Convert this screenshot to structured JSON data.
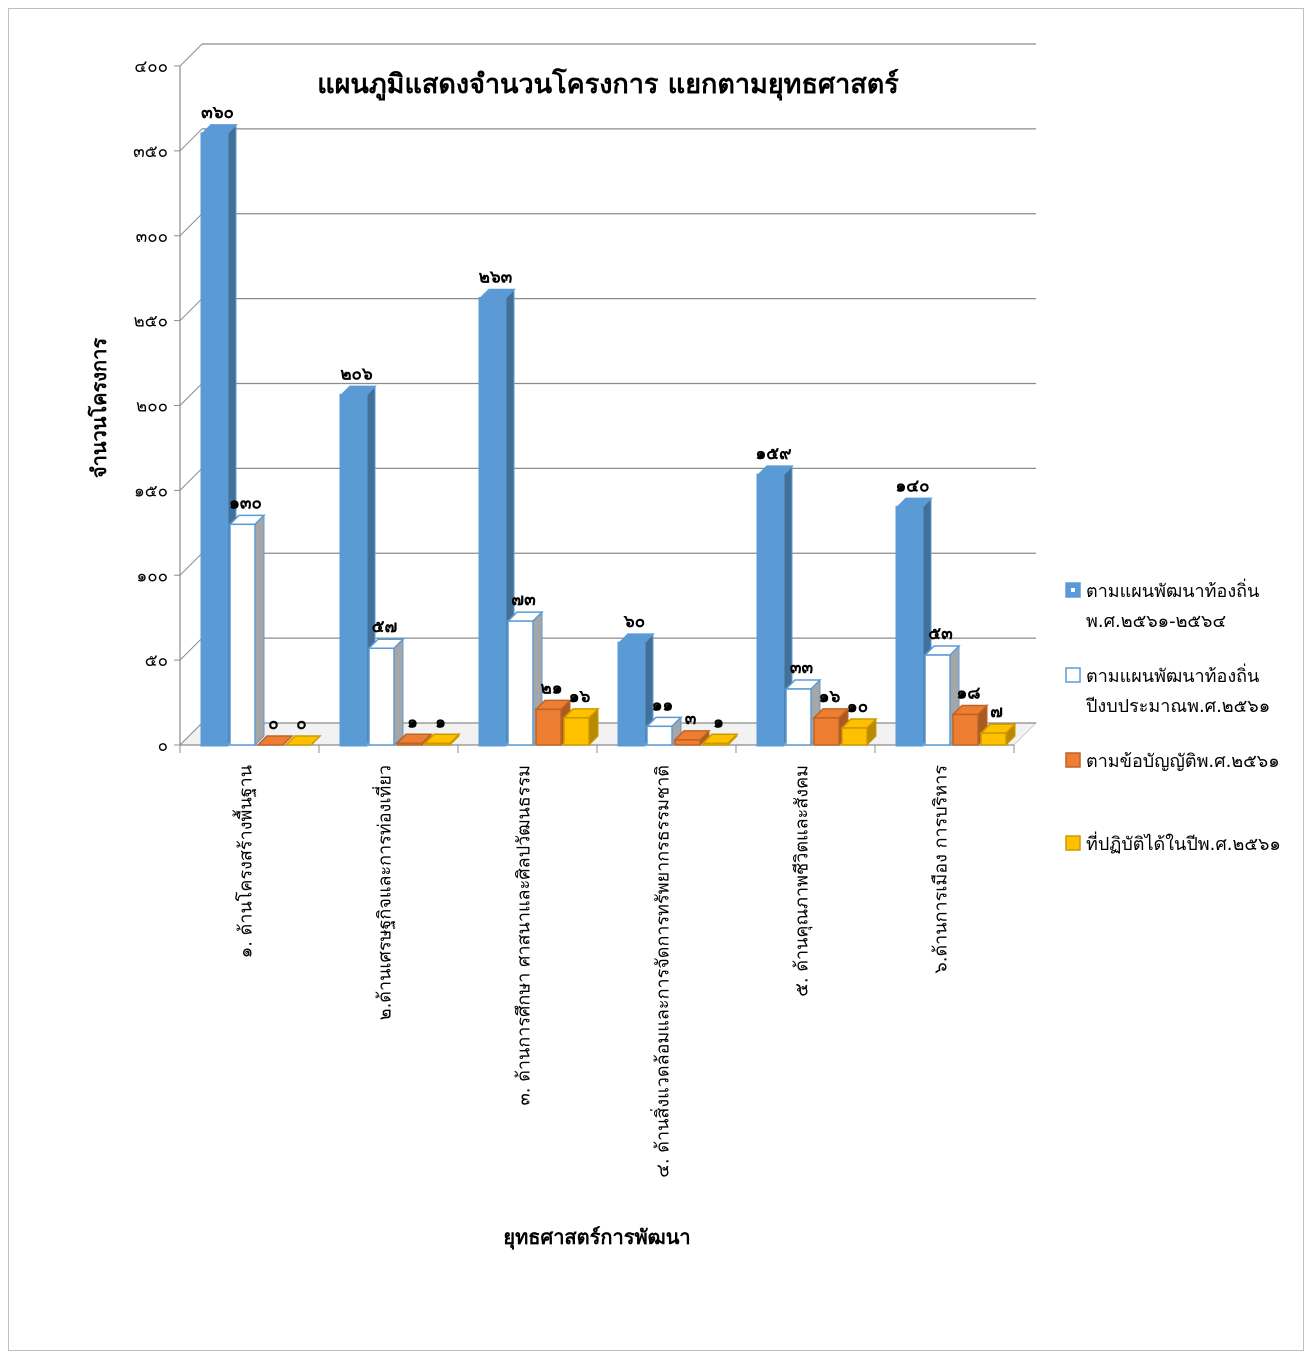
{
  "chart_data": {
    "type": "bar",
    "title": "แผนภูมิแสดงจำนวนโครงการ แยกตามยุทธศาสตร์",
    "xlabel": "ยุทธศาสตร์การพัฒนา",
    "ylabel": "จำนวนโครงการ",
    "ylim": [
      0,
      400
    ],
    "yticks": [
      0,
      50,
      100,
      150,
      200,
      250,
      300,
      350,
      400
    ],
    "ytick_labels": [
      "๐",
      "๕๐",
      "๑๐๐",
      "๑๕๐",
      "๒๐๐",
      "๒๕๐",
      "๓๐๐",
      "๓๕๐",
      "๔๐๐"
    ],
    "grid": true,
    "legend_position": "right",
    "categories": [
      "๑. ด้านโครงสร้างพื้นฐาน",
      "๒.ด้านเศรษฐกิจและการท่องเที่ยว",
      "๓. ด้านการศึกษา ศาสนาและศิลปวัฒนธรรม",
      "๔. ด้านสิ่งแวดล้อมและการจัดการทรัพยากรธรรมชาติ",
      "๕. ด้านคุณภาพชีวิตและสังคม",
      "๖.ด้านการเมือง การบริหาร"
    ],
    "series": [
      {
        "name": "ตามแผนพัฒนาท้องถิ่น พ.ศ.๒๕๖๑-๒๕๖๔",
        "legend_lines": [
          "ตามแผนพัฒนาท้องถิ่น",
          "พ.ศ.๒๕๖๑-๒๕๖๔"
        ],
        "values": [
          360,
          206,
          263,
          60,
          159,
          140
        ],
        "labels": [
          "๓๖๐",
          "๒๐๖",
          "๒๖๓",
          "๖๐",
          "๑๕๙",
          "๑๔๐"
        ],
        "color": "#5b9bd5"
      },
      {
        "name": "ตามแผนพัฒนาท้องถิ่น ปีงบประมาณพ.ศ.๒๕๖๑",
        "legend_lines": [
          "ตามแผนพัฒนาท้องถิ่น",
          "ปีงบประมาณพ.ศ.๒๕๖๑"
        ],
        "values": [
          130,
          57,
          73,
          11,
          33,
          53
        ],
        "labels": [
          "๑๓๐",
          "๕๗",
          "๗๓",
          "๑๑",
          "๓๓",
          "๕๓"
        ],
        "color": "#5b9bd5"
      },
      {
        "name": "ตามข้อบัญญัติพ.ศ.๒๕๖๑",
        "legend_lines": [
          "ตามข้อบัญญัติพ.ศ.๒๕๖๑"
        ],
        "values": [
          0,
          1,
          21,
          3,
          16,
          18
        ],
        "labels": [
          "๐",
          "๑",
          "๒๑",
          "๓",
          "๑๖",
          "๑๘"
        ],
        "color": "#ed7d31"
      },
      {
        "name": "ที่ปฏิบัติได้ในปีพ.ศ.๒๕๖๑",
        "legend_lines": [
          "ที่ปฏิบัติได้ในปีพ.ศ.๒๕๖๑"
        ],
        "values": [
          0,
          1,
          16,
          1,
          10,
          7
        ],
        "labels": [
          "๐",
          "๑",
          "๑๖",
          "๑",
          "๑๐",
          "๗"
        ],
        "color": "#ffc000"
      }
    ]
  }
}
